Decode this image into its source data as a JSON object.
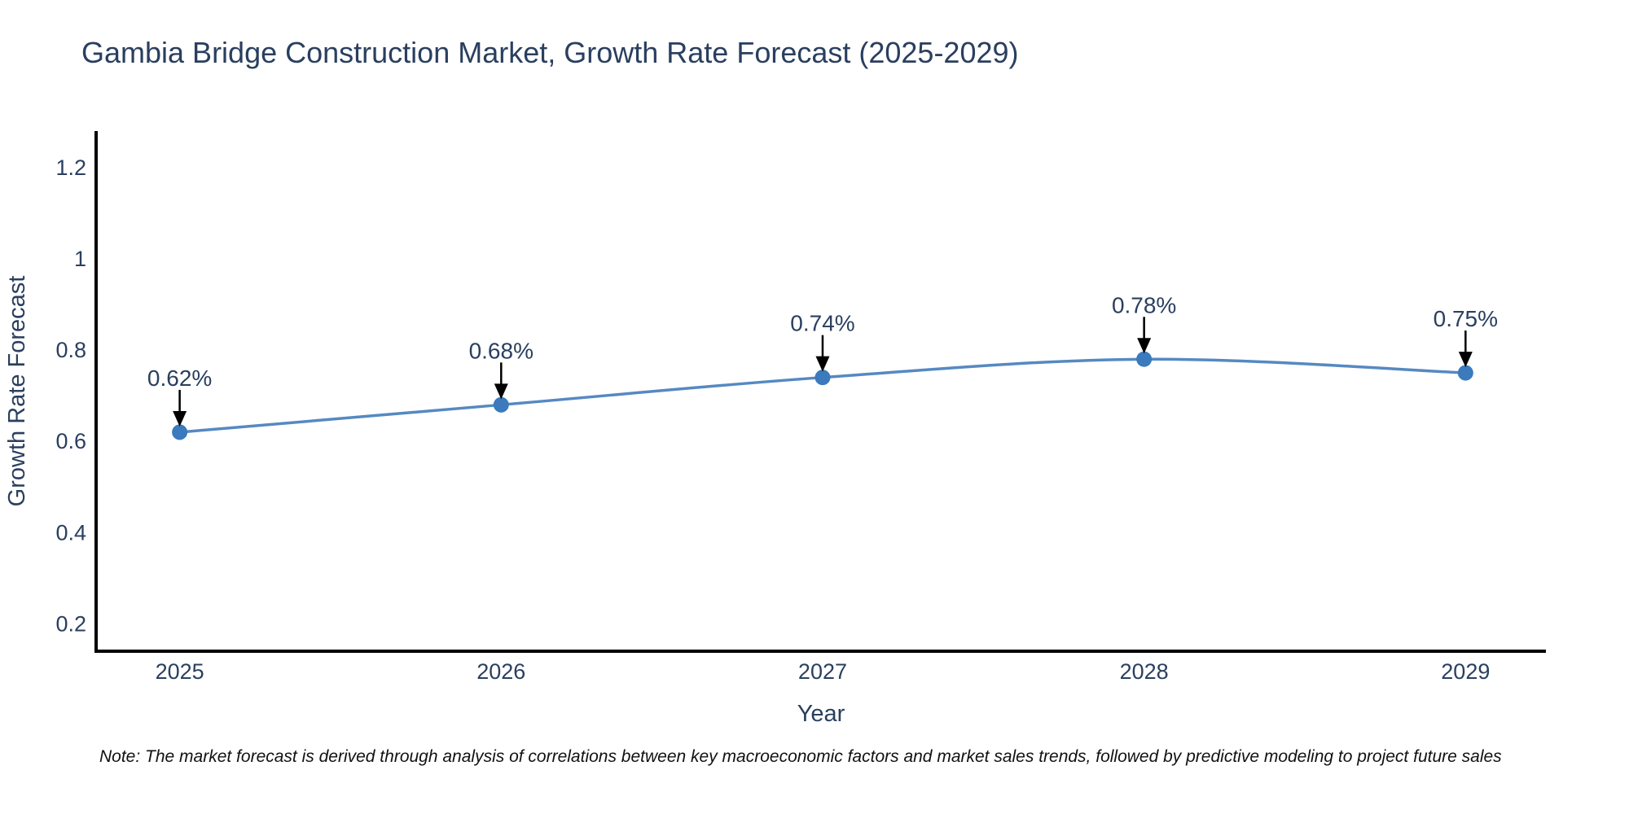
{
  "title": "Gambia Bridge Construction Market, Growth Rate Forecast (2025-2029)",
  "note": "Note: The market forecast is derived through analysis of correlations between key macroeconomic factors and market sales trends, followed by predictive modeling to project future sales",
  "chart_data": {
    "type": "line",
    "title": "Gambia Bridge Construction Market, Growth Rate Forecast (2025-2029)",
    "xlabel": "Year",
    "ylabel": "Growth Rate Forecast",
    "categories": [
      "2025",
      "2026",
      "2027",
      "2028",
      "2029"
    ],
    "values": [
      0.62,
      0.68,
      0.74,
      0.78,
      0.75
    ],
    "point_labels": [
      "0.62%",
      "0.68%",
      "0.74%",
      "0.78%",
      "0.75%"
    ],
    "yticks": [
      0.2,
      0.4,
      0.6,
      0.8,
      1,
      1.2
    ],
    "ytick_labels": [
      "0.2",
      "0.4",
      "0.6",
      "0.8",
      "1",
      "1.2"
    ],
    "ylim": [
      0.14,
      1.28
    ],
    "xlim": [
      -0.26,
      4.25
    ],
    "grid": false,
    "legend": "none",
    "line_shape": "spline",
    "marker": "circle",
    "annotations": "value labels with downward black arrows above each data point",
    "colors": {
      "line": "#5589c2",
      "marker": "#3a7abd",
      "axis": "#000000",
      "title_text": "#2a3f5f",
      "tick_text": "#2a3f5f",
      "axis_label_text": "#2a3f5f",
      "annotation_text": "#2a3f5f",
      "arrow": "#000000",
      "note_text": "#111111",
      "background": "#ffffff"
    }
  }
}
